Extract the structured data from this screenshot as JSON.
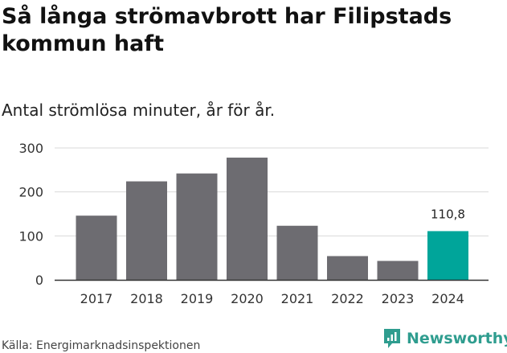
{
  "chart_data": {
    "type": "bar",
    "title": "Så långa strömavbrott har Filipstads kommun haft",
    "subtitle": "Antal strömlösa minuter, år för år.",
    "categories": [
      "2017",
      "2018",
      "2019",
      "2020",
      "2021",
      "2022",
      "2023",
      "2024"
    ],
    "values": [
      146,
      224,
      242,
      278,
      123,
      54,
      43,
      110.8
    ],
    "ylim": [
      0,
      300
    ],
    "yticks": [
      0,
      100,
      200,
      300
    ],
    "grid": true,
    "data_labels": [
      {
        "category": "2024",
        "text": "110,8"
      }
    ],
    "colors": {
      "default": "#6d6c71",
      "highlight": "#00a59a",
      "grid": "#d9d9d9",
      "axis": "#333333"
    },
    "highlight_category": "2024"
  },
  "footer": {
    "source": "Källa: Energimarknadsinspektionen",
    "brand_name": "Newsworthy",
    "brand_icon": "newsworthy-logo-icon"
  }
}
